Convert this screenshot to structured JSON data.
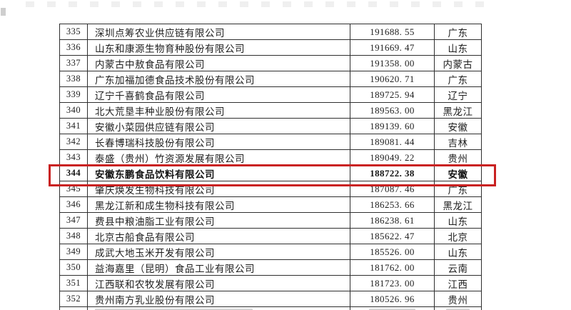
{
  "colors": {
    "background": "#ffffff",
    "grid_line": "#2f2f2f",
    "text": "#1e1e1e",
    "highlight_red": "#c92121",
    "faded_gray": "#bdbdbd"
  },
  "table": {
    "columns": [
      "rank",
      "company",
      "value",
      "province"
    ],
    "rows": [
      {
        "rank": "335",
        "company": "深圳点筹农业供应链有限公司",
        "value": "191688.55",
        "province": "广东"
      },
      {
        "rank": "336",
        "company": "山东和康源生物育种股份有限公司",
        "value": "191669.47",
        "province": "山东"
      },
      {
        "rank": "337",
        "company": "内蒙古中敖食品有限公司",
        "value": "191358.00",
        "province": "内蒙古"
      },
      {
        "rank": "338",
        "company": "广东加福加德食品技术股份有限公司",
        "value": "190620.71",
        "province": "广东"
      },
      {
        "rank": "339",
        "company": "辽宁千喜鹤食品有限公司",
        "value": "189725.94",
        "province": "辽宁"
      },
      {
        "rank": "340",
        "company": "北大荒垦丰种业股份有限公司",
        "value": "189563.00",
        "province": "黑龙江"
      },
      {
        "rank": "341",
        "company": "安徽小菜园供应链有限公司",
        "value": "189139.60",
        "province": "安徽"
      },
      {
        "rank": "342",
        "company": "长春博瑞科技股份有限公司",
        "value": "189081.44",
        "province": "吉林"
      },
      {
        "rank": "343",
        "company": "泰盛（贵州）竹资源发展有限公司",
        "value": "189049.22",
        "province": "贵州"
      },
      {
        "rank": "344",
        "company": "安徽东鹏食品饮料有限公司",
        "value": "188722.38",
        "province": "安徽"
      },
      {
        "rank": "345",
        "company": "肇庆焕发生物科技有限公司",
        "value": "187087.46",
        "province": "广东"
      },
      {
        "rank": "346",
        "company": "黑龙江新和成生物科技有限公司",
        "value": "186253.66",
        "province": "黑龙江"
      },
      {
        "rank": "347",
        "company": "费县中粮油脂工业有限公司",
        "value": "186238.61",
        "province": "山东"
      },
      {
        "rank": "348",
        "company": "北京古船食品有限公司",
        "value": "185622.47",
        "province": "北京"
      },
      {
        "rank": "349",
        "company": "成武大地玉米开发有限公司",
        "value": "185526.00",
        "province": "山东"
      },
      {
        "rank": "350",
        "company": "益海嘉里（昆明）食品工业有限公司",
        "value": "181762.00",
        "province": "云南"
      },
      {
        "rank": "351",
        "company": "江西联和农牧发展有限公司",
        "value": "181723.00",
        "province": "江西"
      },
      {
        "rank": "352",
        "company": "贵州南方乳业股份有限公司",
        "value": "180526.96",
        "province": "贵州"
      }
    ]
  },
  "highlight": {
    "rank": "344",
    "box_color": "#c92121"
  },
  "artifacts": {
    "faded_strip_top": true,
    "partial_row_bottom": true
  }
}
